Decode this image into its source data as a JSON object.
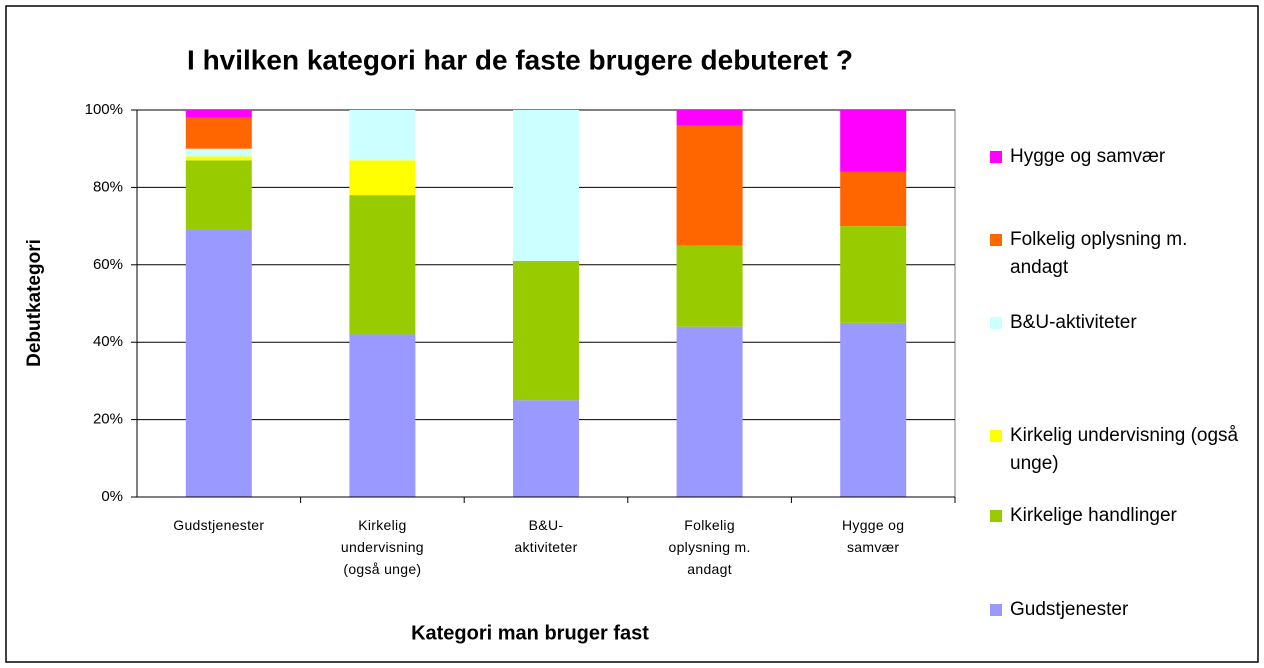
{
  "chart_data": {
    "type": "stacked_bar",
    "title": "I hvilken kategori har de faste brugere debuteret ?",
    "x_label": "Kategori man bruger fast",
    "y_label": "Debutkategori",
    "categories": [
      "Gudstjenester",
      "Kirkelig undervisning (også unge)",
      "B&U-aktiviteter",
      "Folkelig oplysning m. andagt",
      "Hygge og samvær"
    ],
    "series": [
      {
        "name": "Gudstjenester",
        "color": "#9999ff",
        "values": [
          69,
          42,
          25,
          44,
          45
        ]
      },
      {
        "name": "Kirkelige handlinger",
        "color": "#99cc00",
        "values": [
          18,
          36,
          36,
          21,
          25
        ]
      },
      {
        "name": "Kirkelig undervisning (også unge)",
        "color": "#ffff00",
        "values": [
          1,
          9,
          0,
          0,
          0
        ]
      },
      {
        "name": "B&U-aktiviteter",
        "color": "#ccffff",
        "values": [
          2,
          13,
          39,
          0,
          0
        ]
      },
      {
        "name": "Folkelig oplysning m. andagt",
        "color": "#ff6600",
        "values": [
          8,
          0,
          0,
          31,
          14
        ]
      },
      {
        "name": "Hygge og samvær",
        "color": "#ff00ff",
        "values": [
          2,
          0,
          0,
          4,
          16
        ]
      }
    ],
    "ylim": [
      0,
      100
    ],
    "yticks": [
      {
        "value": 0,
        "label": "0%"
      },
      {
        "value": 20,
        "label": "20%"
      },
      {
        "value": 40,
        "label": "40%"
      },
      {
        "value": 60,
        "label": "60%"
      },
      {
        "value": 80,
        "label": "80%"
      },
      {
        "value": 100,
        "label": "100%"
      }
    ],
    "grid": true,
    "legend": "right"
  }
}
